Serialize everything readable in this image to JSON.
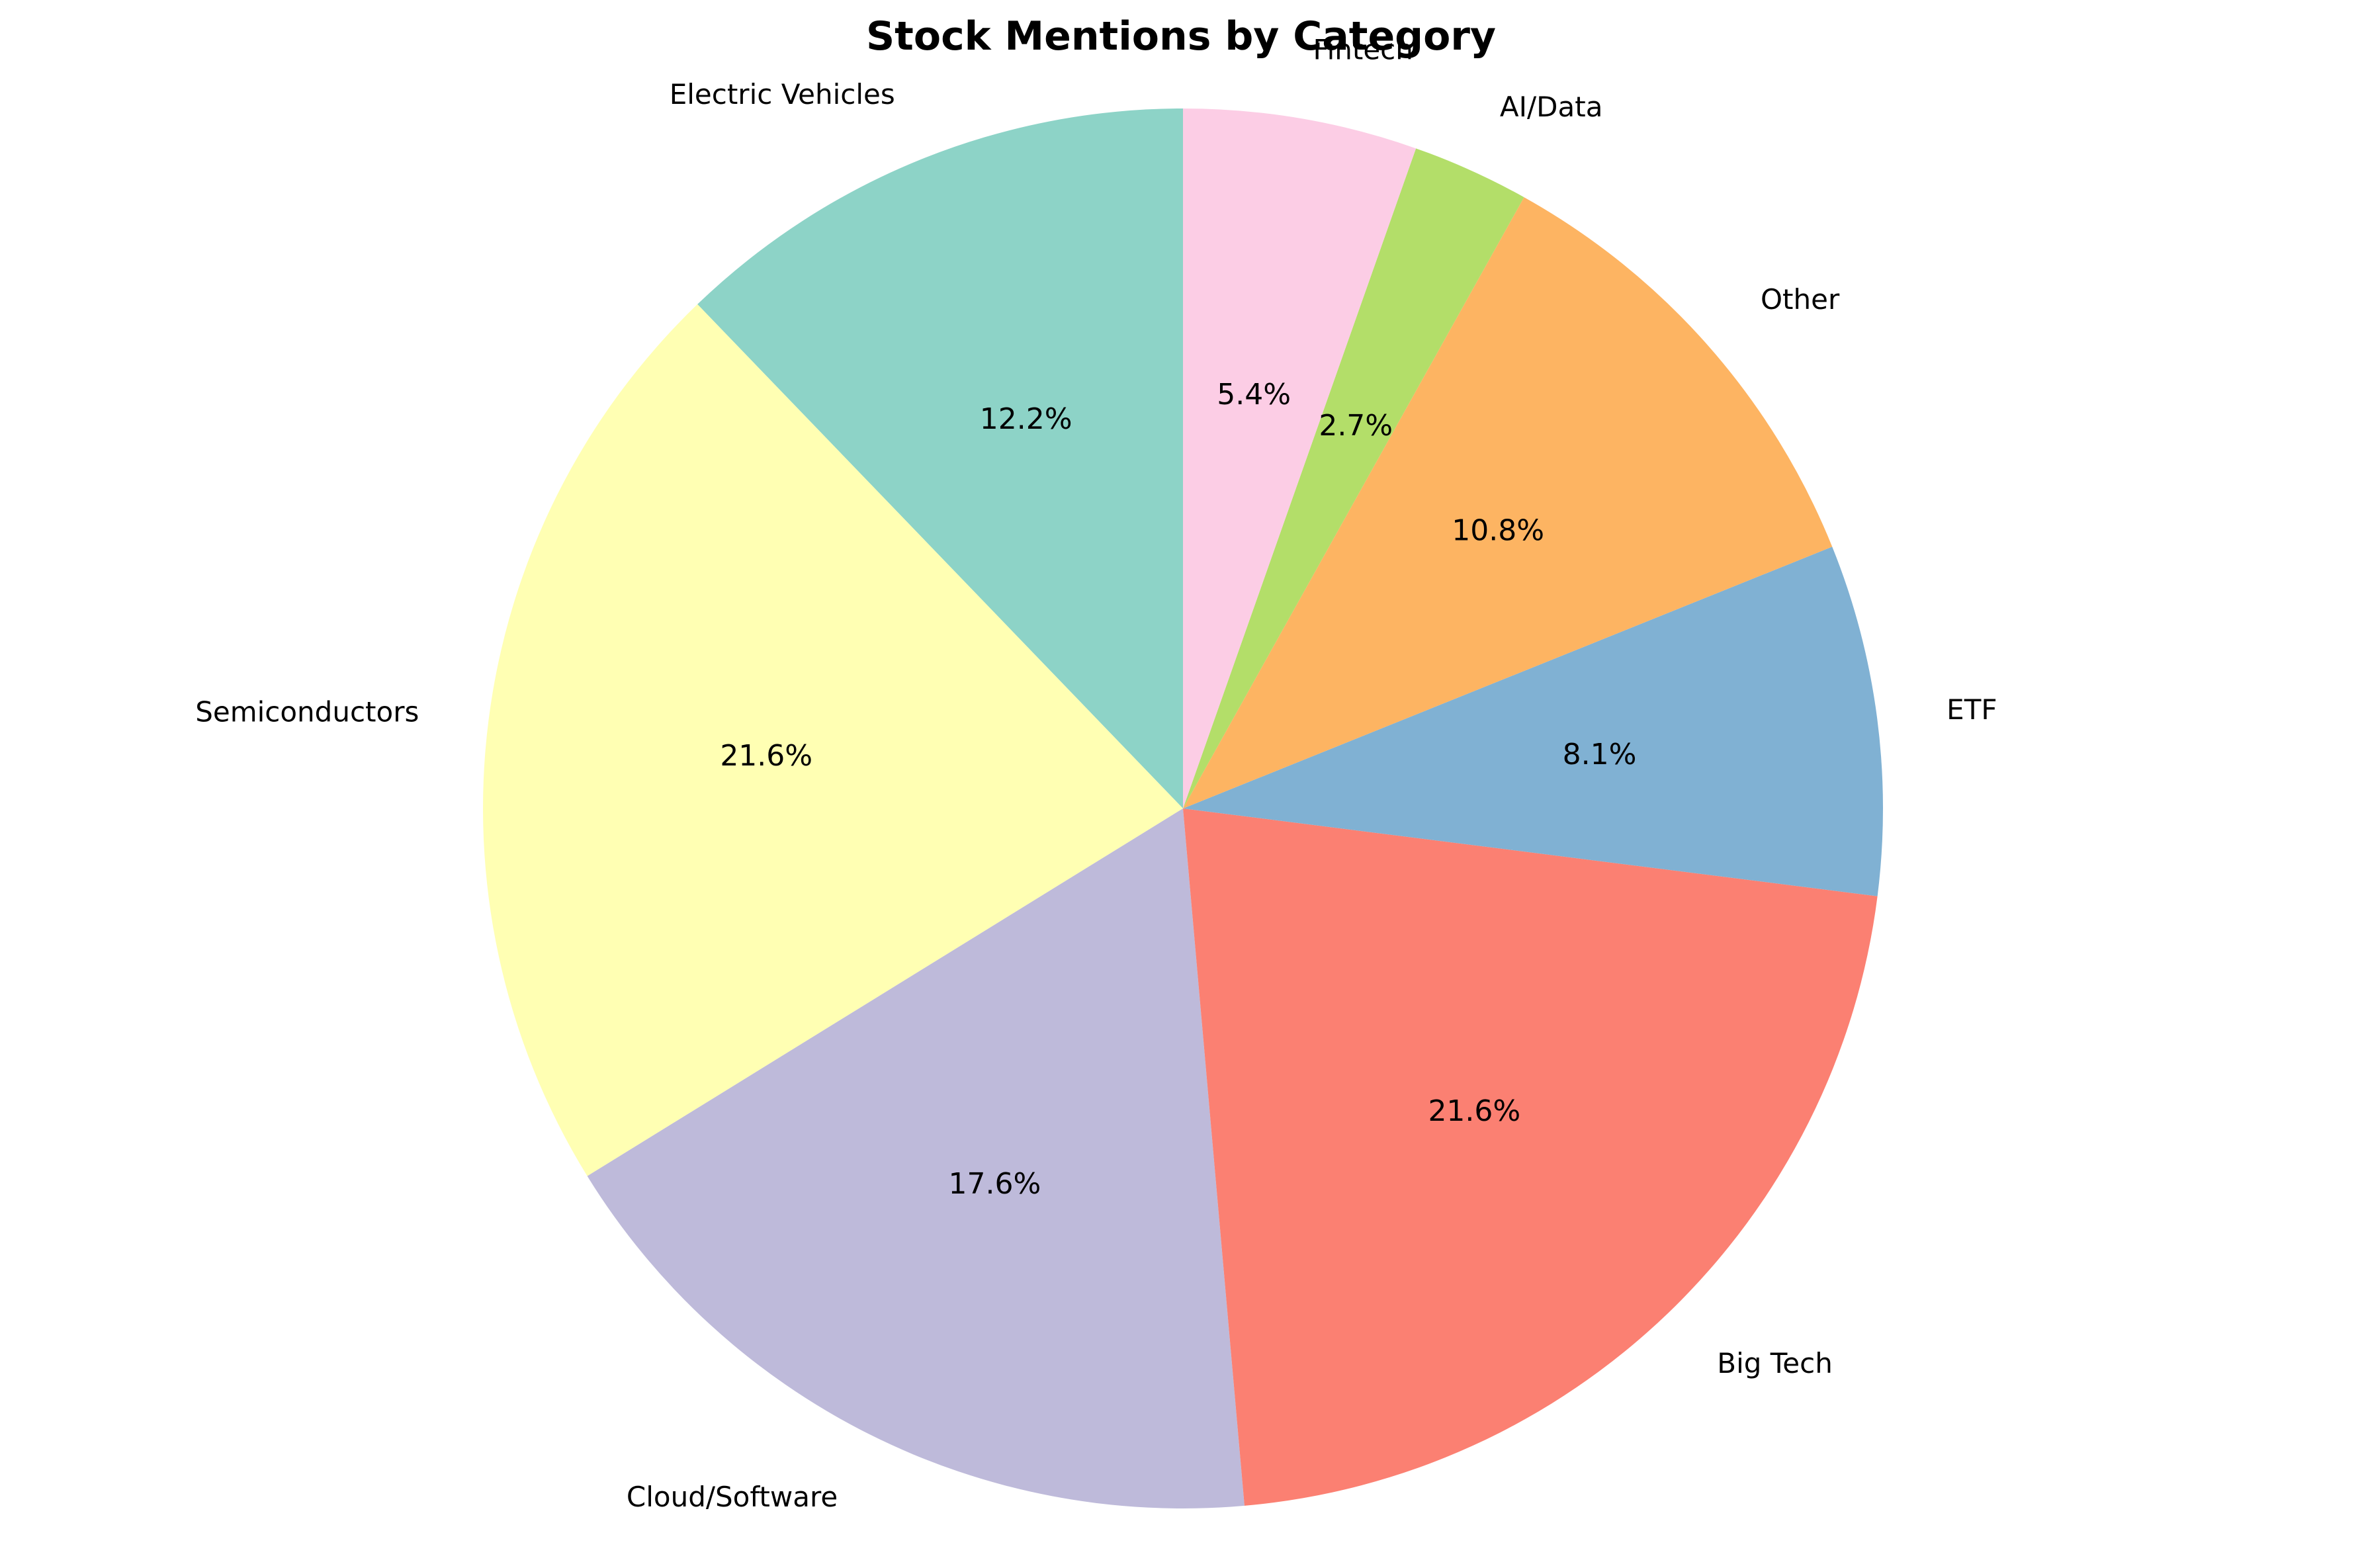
{
  "chart_data": {
    "type": "pie",
    "title": "Stock Mentions by Category",
    "start_angle_deg": 90,
    "direction": "counterclockwise",
    "slices": [
      {
        "label": "Electric Vehicles",
        "percent": 12.2,
        "percent_label": "12.2%",
        "color": "#8dd3c7"
      },
      {
        "label": "Semiconductors",
        "percent": 21.6,
        "percent_label": "21.6%",
        "color": "#ffffb3"
      },
      {
        "label": "Cloud/Software",
        "percent": 17.6,
        "percent_label": "17.6%",
        "color": "#bebada"
      },
      {
        "label": "Big Tech",
        "percent": 21.6,
        "percent_label": "21.6%",
        "color": "#fb8072"
      },
      {
        "label": "ETF",
        "percent": 8.1,
        "percent_label": "8.1%",
        "color": "#80b1d3"
      },
      {
        "label": "Other",
        "percent": 10.8,
        "percent_label": "10.8%",
        "color": "#fdb462"
      },
      {
        "label": "AI/Data",
        "percent": 2.7,
        "percent_label": "2.7%",
        "color": "#b3de69"
      },
      {
        "label": "Fintech",
        "percent": 5.4,
        "percent_label": "5.4%",
        "color": "#fccde5"
      }
    ]
  }
}
